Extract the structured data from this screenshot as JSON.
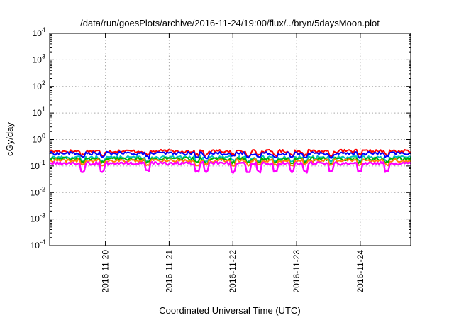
{
  "chart_data": {
    "type": "line",
    "title": "/data/run/goesPlots/archive/2016-11-24/19:00/flux/../bryn/5daysMoon.plot",
    "xlabel": "Coordinated Universal Time (UTC)",
    "ylabel": "cGy/day",
    "yscale": "log",
    "ylim": [
      0.0001,
      10000
    ],
    "xlim": [
      "2016-11-19T03:00",
      "2016-11-24T19:00"
    ],
    "grid": true,
    "y_ticks": [
      {
        "value": 0.0001,
        "base": "10",
        "exp": "-4"
      },
      {
        "value": 0.001,
        "base": "10",
        "exp": "-3"
      },
      {
        "value": 0.01,
        "base": "10",
        "exp": "-2"
      },
      {
        "value": 0.1,
        "base": "10",
        "exp": "-1"
      },
      {
        "value": 1,
        "base": "10",
        "exp": "0"
      },
      {
        "value": 10,
        "base": "10",
        "exp": "1"
      },
      {
        "value": 100,
        "base": "10",
        "exp": "2"
      },
      {
        "value": 1000,
        "base": "10",
        "exp": "3"
      },
      {
        "value": 10000,
        "base": "10",
        "exp": "4"
      }
    ],
    "x_ticks": [
      {
        "value": "2016-11-20T00:00",
        "label": "2016-11-20"
      },
      {
        "value": "2016-11-21T00:00",
        "label": "2016-11-21"
      },
      {
        "value": "2016-11-22T00:00",
        "label": "2016-11-22"
      },
      {
        "value": "2016-11-23T00:00",
        "label": "2016-11-23"
      },
      {
        "value": "2016-11-24T00:00",
        "label": "2016-11-24"
      }
    ],
    "series": [
      {
        "color": "#ff0000",
        "x": [
          "2016-11-19T03:00",
          "2016-11-24T19:00"
        ],
        "values": [
          0.36,
          0.36
        ]
      },
      {
        "color": "#0000ff",
        "x": [
          "2016-11-19T03:00",
          "2016-11-24T19:00"
        ],
        "values": [
          0.3,
          0.3
        ]
      },
      {
        "color": "#00c0c0",
        "x": [
          "2016-11-19T03:00",
          "2016-11-24T19:00"
        ],
        "values": [
          0.21,
          0.21
        ]
      },
      {
        "color": "#00b000",
        "x": [
          "2016-11-19T03:00",
          "2016-11-24T19:00"
        ],
        "values": [
          0.185,
          0.185
        ]
      },
      {
        "color": "#ff8000",
        "x": [
          "2016-11-19T03:00",
          "2016-11-24T19:00"
        ],
        "values": [
          0.16,
          0.16
        ]
      },
      {
        "color": "#ff00ff",
        "x": [
          "2016-11-19T03:00",
          "2016-11-24T19:00"
        ],
        "values": [
          0.125,
          0.125
        ]
      }
    ]
  }
}
